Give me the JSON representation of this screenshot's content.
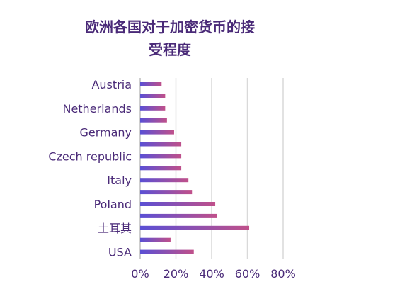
{
  "chart_data": {
    "type": "bar",
    "orientation": "horizontal",
    "title_line1": "欧洲各国对于加密货币的接",
    "title_line2": "受程度",
    "categories": [
      "Austria",
      "",
      "Netherlands",
      "",
      "Germany",
      "",
      "Czech republic",
      "",
      "Italy",
      "",
      "Poland",
      "",
      "土耳其",
      "",
      "USA"
    ],
    "values": [
      12,
      14,
      14,
      15,
      19,
      23,
      23,
      23,
      27,
      29,
      42,
      43,
      61,
      17,
      30
    ],
    "xlim": [
      0,
      80
    ],
    "xticks": [
      "0%",
      "20%",
      "40%",
      "60%",
      "80%"
    ],
    "grid": true,
    "bar_gradient": [
      "#5a4fd4",
      "#c0508a"
    ]
  }
}
